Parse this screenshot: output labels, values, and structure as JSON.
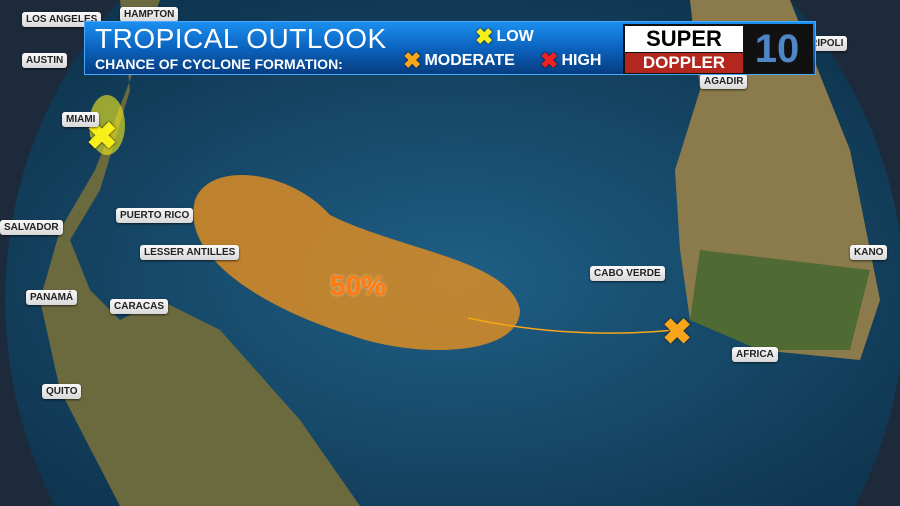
{
  "banner": {
    "title": "TROPICAL OUTLOOK",
    "subtitle": "CHANCE OF CYCLONE FORMATION:"
  },
  "legend": [
    {
      "label": "LOW",
      "color": "#f7ef1a"
    },
    {
      "label": "MODERATE",
      "color": "#f7a51a"
    },
    {
      "label": "HIGH",
      "color": "#ee2222"
    }
  ],
  "logo": {
    "top": "SUPER",
    "bottom": "DOPPLER",
    "number": "10"
  },
  "areas": [
    {
      "chance": "50%",
      "color": "#e8901e"
    }
  ],
  "markers": [
    {
      "level": "LOW",
      "icon": "x-icon"
    },
    {
      "level": "MODERATE",
      "icon": "x-icon"
    }
  ],
  "cities": [
    "LOS ANGELES",
    "HAMPTON",
    "AUSTIN",
    "MIAMI",
    "SALVADOR",
    "PUERTO RICO",
    "LESSER ANTILLES",
    "PANAMÁ",
    "CARACAS",
    "QUITO",
    "CABO VERDE",
    "AGADIR",
    "TRIPOLI",
    "KANO",
    "AFRICA"
  ]
}
